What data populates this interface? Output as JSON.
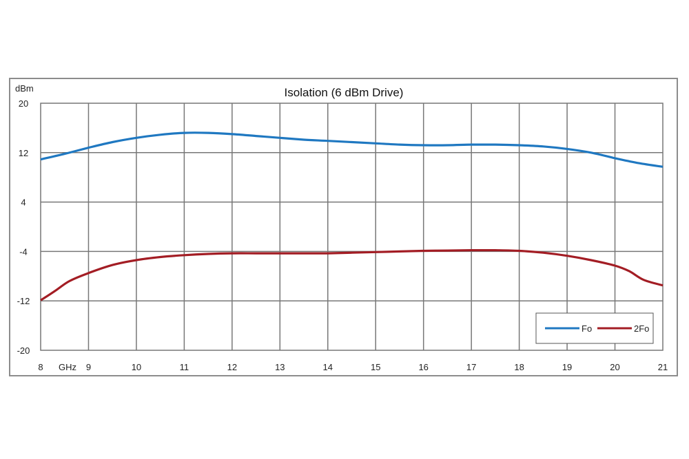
{
  "chart_data": {
    "type": "line",
    "title": "Isolation (6 dBm Drive)",
    "ylabel": "dBm",
    "xlabel": "GHz",
    "xlim": [
      8,
      21
    ],
    "ylim": [
      -20,
      20
    ],
    "x_ticks": [
      "8",
      "9",
      "10",
      "11",
      "12",
      "13",
      "14",
      "15",
      "16",
      "17",
      "18",
      "19",
      "20",
      "21"
    ],
    "y_ticks": [
      "20",
      "12",
      "4",
      "-4",
      "-12",
      "-20"
    ],
    "grid": true,
    "legend_position": "bottom-right",
    "series": [
      {
        "name": "Fo",
        "color": "#1f78c1",
        "x": [
          8,
          8.5,
          9,
          9.5,
          10,
          10.5,
          11,
          11.5,
          12,
          12.5,
          13,
          13.5,
          14,
          14.5,
          15,
          15.5,
          16,
          16.5,
          17,
          17.5,
          18,
          18.5,
          19,
          19.5,
          20,
          20.5,
          21
        ],
        "y": [
          10.9,
          11.8,
          12.8,
          13.7,
          14.4,
          14.9,
          15.2,
          15.2,
          15.0,
          14.7,
          14.4,
          14.1,
          13.9,
          13.7,
          13.5,
          13.3,
          13.2,
          13.2,
          13.3,
          13.3,
          13.2,
          13.0,
          12.6,
          12.0,
          11.1,
          10.3,
          9.7
        ]
      },
      {
        "name": "2Fo",
        "color": "#a31d24",
        "x": [
          8,
          8.3,
          8.6,
          9,
          9.5,
          10,
          10.5,
          11,
          11.5,
          12,
          12.5,
          13,
          13.5,
          14,
          14.5,
          15,
          15.5,
          16,
          16.5,
          17,
          17.5,
          18,
          18.5,
          19,
          19.5,
          20,
          20.3,
          20.6,
          21
        ],
        "y": [
          -11.9,
          -10.4,
          -8.8,
          -7.5,
          -6.2,
          -5.4,
          -4.9,
          -4.6,
          -4.4,
          -4.3,
          -4.3,
          -4.3,
          -4.3,
          -4.3,
          -4.2,
          -4.1,
          -4.0,
          -3.9,
          -3.85,
          -3.8,
          -3.8,
          -3.9,
          -4.2,
          -4.7,
          -5.4,
          -6.3,
          -7.2,
          -8.6,
          -9.5
        ]
      }
    ]
  }
}
